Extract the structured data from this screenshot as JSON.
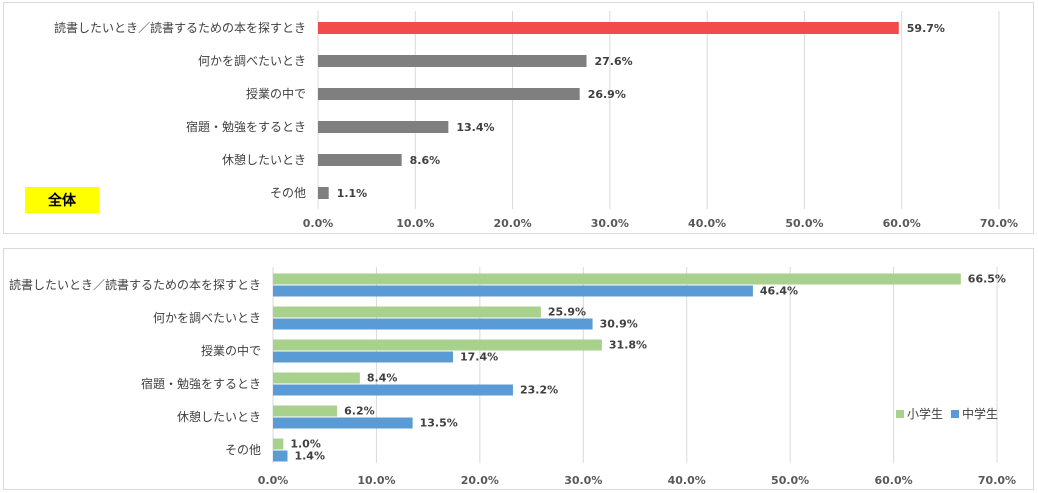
{
  "overall": {
    "badge": "全体",
    "chart_data": {
      "type": "bar",
      "orientation": "horizontal",
      "categories": [
        "読書したいとき／読書するための本を探すとき",
        "何かを調べたいとき",
        "授業の中で",
        "宿題・勉強をするとき",
        "休憩したいとき",
        "その他"
      ],
      "values": [
        59.7,
        27.6,
        26.9,
        13.4,
        8.6,
        1.1
      ],
      "value_labels": [
        "59.7%",
        "27.6%",
        "26.9%",
        "13.4%",
        "8.6%",
        "1.1%"
      ],
      "highlight_color": "#f24b4b",
      "bar_color": "#7f7f7f",
      "xlim": [
        0,
        70
      ],
      "ticks": [
        "0.0%",
        "10.0%",
        "20.0%",
        "30.0%",
        "40.0%",
        "50.0%",
        "60.0%",
        "70.0%"
      ],
      "grid": true
    }
  },
  "by_school": {
    "legend": [
      {
        "name": "小学生",
        "color": "#a9d18e"
      },
      {
        "name": "中学生",
        "color": "#5b9bd5"
      }
    ],
    "chart_data": {
      "type": "bar",
      "orientation": "horizontal",
      "categories": [
        "読書したいとき／読書するための本を探すとき",
        "何かを調べたいとき",
        "授業の中で",
        "宿題・勉強をするとき",
        "休憩したいとき",
        "その他"
      ],
      "series": [
        {
          "name": "小学生",
          "values": [
            66.5,
            25.9,
            31.8,
            8.4,
            6.2,
            1.0
          ],
          "labels": [
            "66.5%",
            "25.9%",
            "31.8%",
            "8.4%",
            "6.2%",
            "1.0%"
          ]
        },
        {
          "name": "中学生",
          "values": [
            46.4,
            30.9,
            17.4,
            23.2,
            13.5,
            1.4
          ],
          "labels": [
            "46.4%",
            "30.9%",
            "17.4%",
            "23.2%",
            "13.5%",
            "1.4%"
          ]
        }
      ],
      "xlim": [
        0,
        70
      ],
      "ticks": [
        "0.0%",
        "10.0%",
        "20.0%",
        "30.0%",
        "40.0%",
        "50.0%",
        "60.0%",
        "70.0%"
      ],
      "grid": true,
      "legend_position": "right"
    }
  }
}
